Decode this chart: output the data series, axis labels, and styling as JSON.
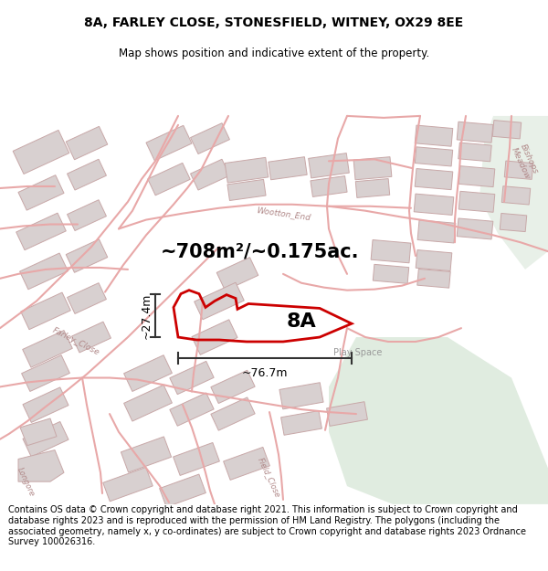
{
  "title_line1": "8A, FARLEY CLOSE, STONESFIELD, WITNEY, OX29 8EE",
  "title_line2": "Map shows position and indicative extent of the property.",
  "area_text": "~708m²/~0.175ac.",
  "label_8A": "8A",
  "dim_height": "~27.4m",
  "dim_width": "~76.7m",
  "play_space": "Play Space",
  "farley_close": "Farley_Close",
  "wootton_end": "Wootton_End",
  "bishops_meadow": "Bishops\nMeadow",
  "longore": "Longore",
  "field_close": "Field_Close",
  "footer_text": "Contains OS data © Crown copyright and database right 2021. This information is subject to Crown copyright and database rights 2023 and is reproduced with the permission of HM Land Registry. The polygons (including the associated geometry, namely x, y co-ordinates) are subject to Crown copyright and database rights 2023 Ordnance Survey 100026316.",
  "bg_color": "#f5f4f2",
  "road_color": "#e8a8a8",
  "road_fill": "#f5f0f0",
  "building_fc": "#d8d0d0",
  "building_ec": "#c8a8a8",
  "green_color": "#ddeedd",
  "green_color2": "#e8f0e8",
  "dim_color": "#333333",
  "label_color": "#aaaaaa",
  "road_label_color": "#b08888"
}
